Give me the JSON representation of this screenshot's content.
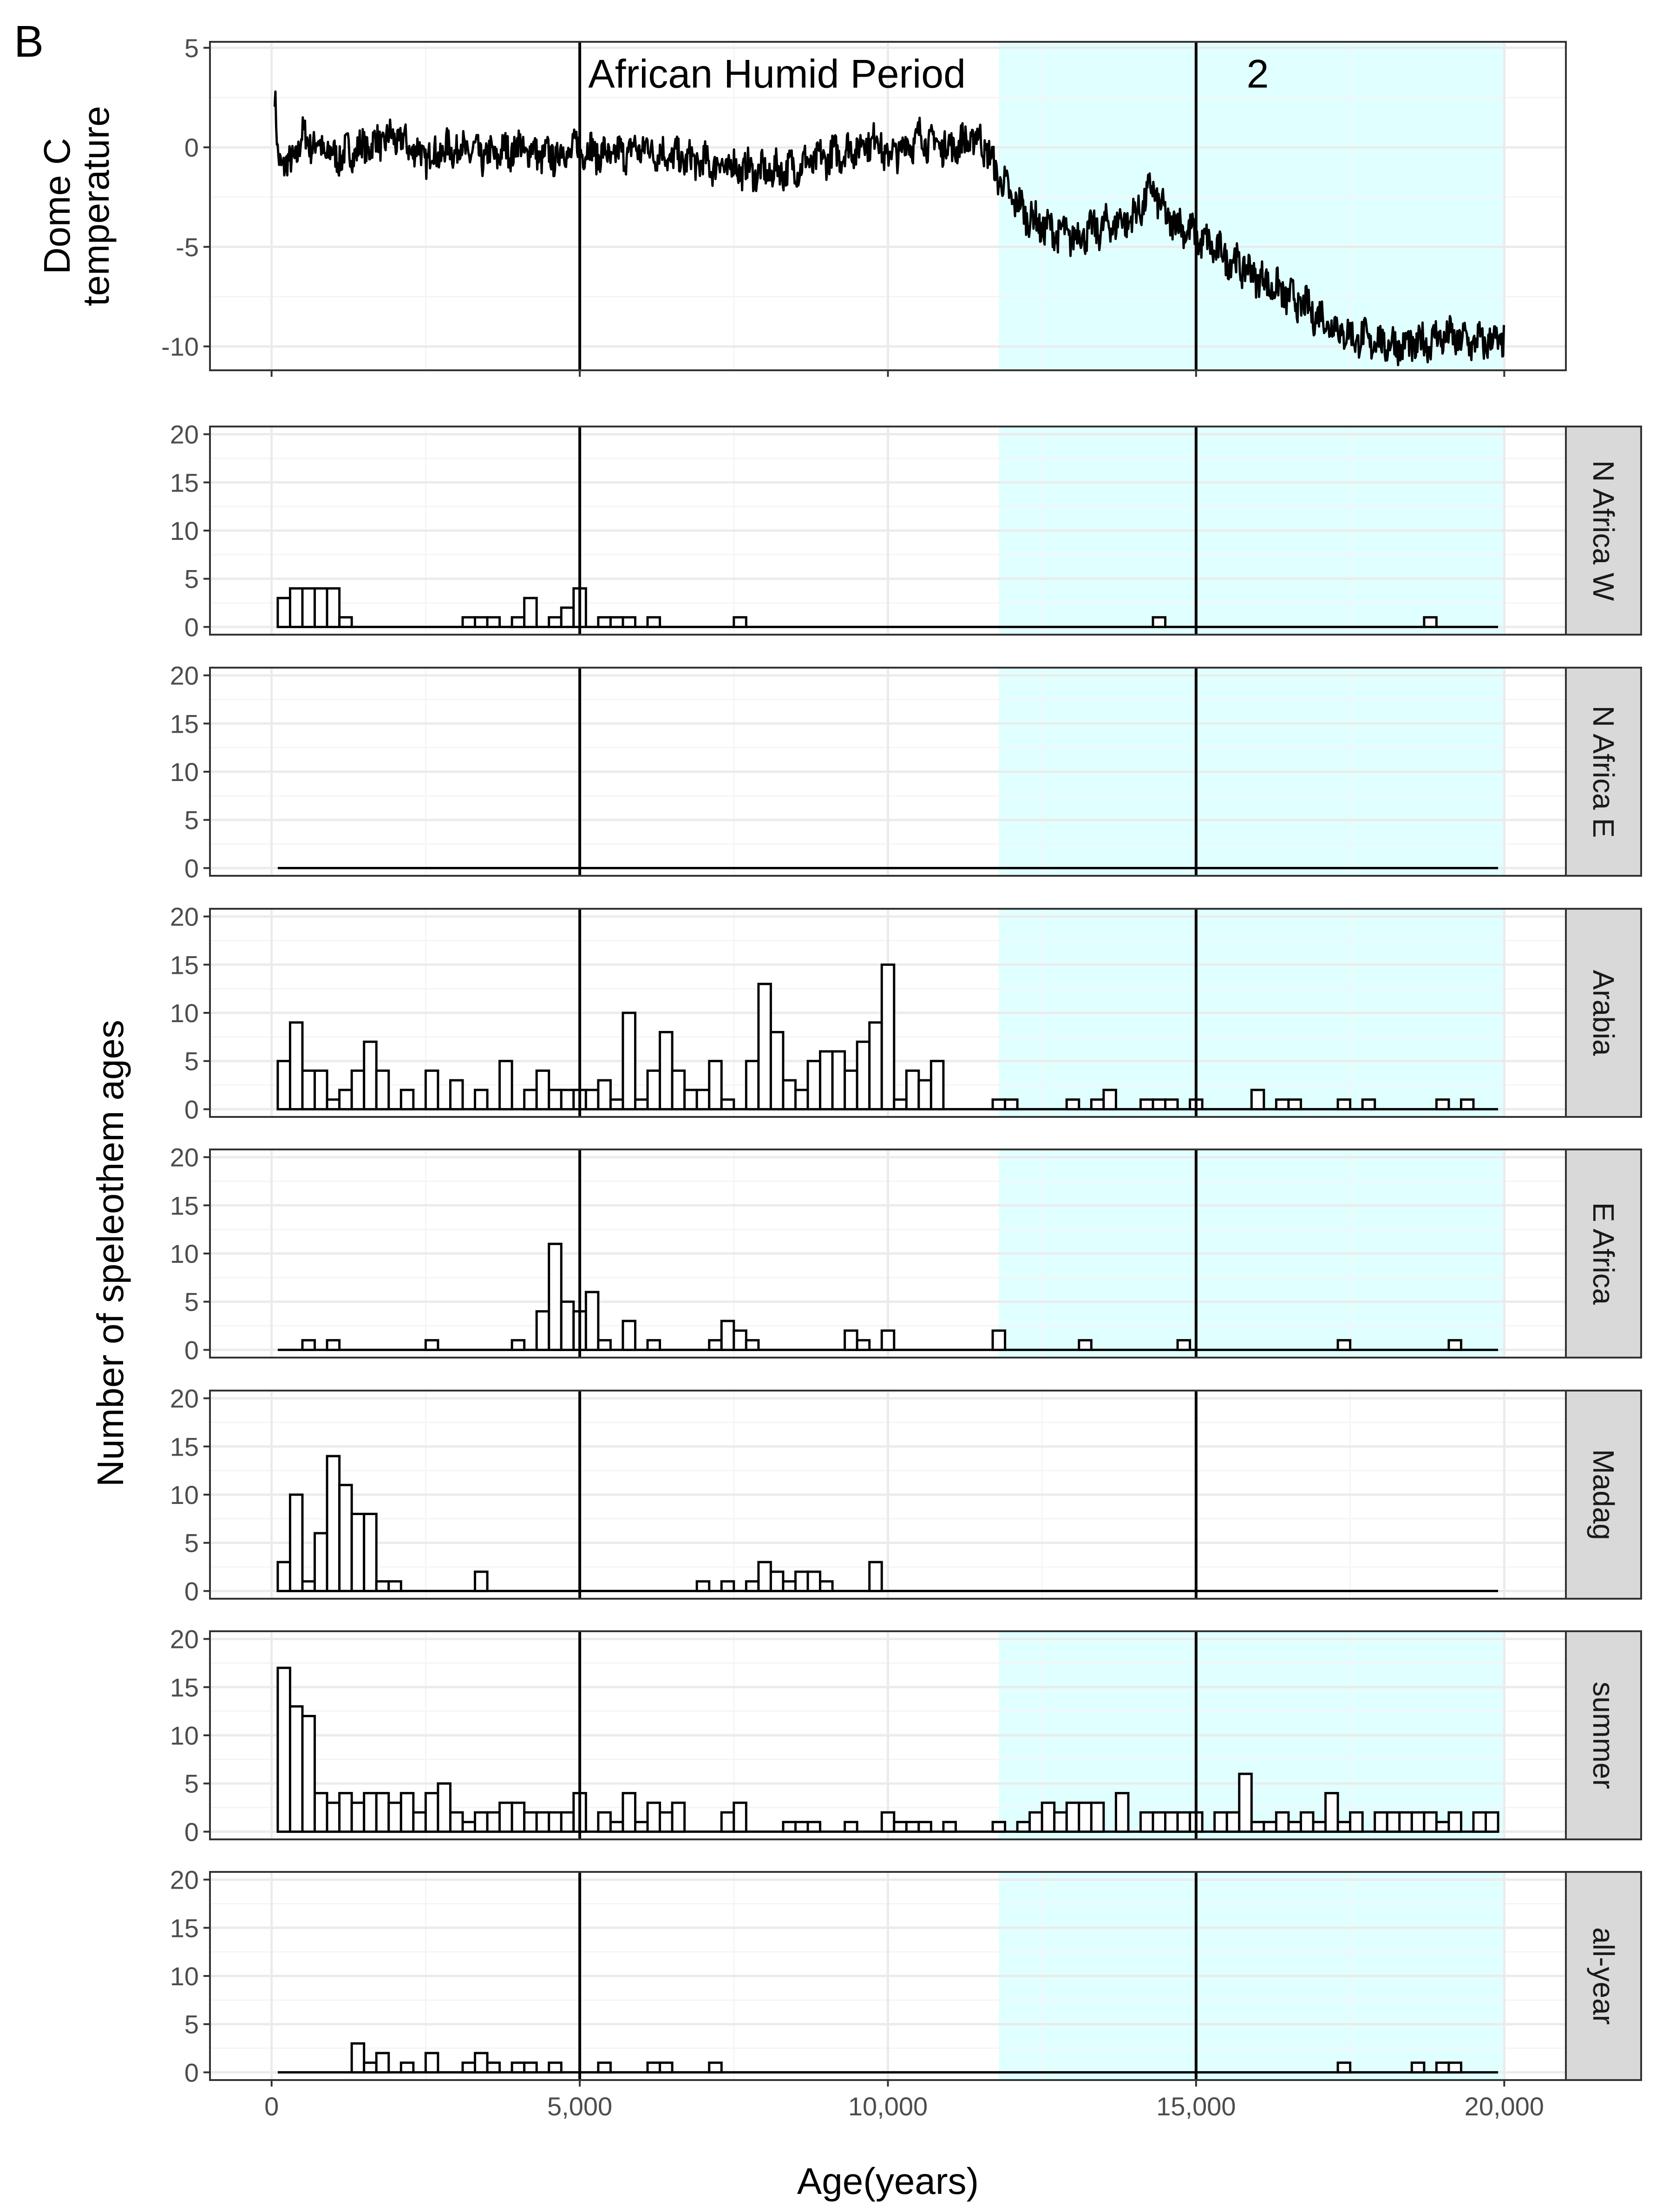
{
  "panel_tag": "B",
  "colors": {
    "shade": "#e0ffff",
    "grid_major": "#ebebeb",
    "grid_minor": "#f5f5f5",
    "frame": "#333333",
    "strip_fill": "#d9d9d9",
    "line": "#000000",
    "bar_fill": "#ffffff"
  },
  "chart_data": [
    {
      "type": "line",
      "title": "Dome C temperature",
      "ylabel": "Dome C\ntemperature",
      "ylabel_lines": [
        "Dome C",
        "temperature"
      ],
      "xlim": [
        -1000,
        21000
      ],
      "ylim": [
        -11.2,
        5.3
      ],
      "yticks": [
        5,
        0,
        -5,
        -10
      ],
      "ytick_labels": [
        "5",
        "0",
        "-5",
        "-10"
      ],
      "shaded_region": [
        11800,
        20000
      ],
      "vlines": [
        5000,
        15000
      ],
      "annotations": [
        {
          "text": "African Humid Period",
          "x": 8200,
          "y": 3.7
        },
        {
          "text": "2",
          "x": 16000,
          "y": 3.7
        }
      ],
      "series": [
        {
          "name": "Dome C temperature anomaly",
          "x": [
            50,
            100,
            300,
            500,
            800,
            1000,
            1500,
            2000,
            2500,
            3000,
            3500,
            4000,
            4500,
            5000,
            5500,
            6000,
            6500,
            7000,
            7500,
            8000,
            8500,
            9000,
            9500,
            9800,
            10000,
            10500,
            11000,
            11500,
            11800,
            12000,
            12300,
            12500,
            13000,
            13500,
            14000,
            14300,
            14500,
            14800,
            15000,
            15500,
            16000,
            16500,
            17000,
            17500,
            18000,
            18500,
            19000,
            19500,
            20000
          ],
          "y": [
            2.5,
            -0.5,
            -1,
            0.5,
            0,
            -0.5,
            0,
            0.5,
            -0.5,
            0,
            -0.5,
            0,
            -0.5,
            0,
            -0.5,
            0,
            -0.5,
            -0.8,
            -1,
            -1.3,
            -1,
            -0.5,
            0,
            0.5,
            -0.5,
            0.5,
            0,
            0.5,
            -1.5,
            -2.5,
            -3.5,
            -4,
            -4.5,
            -4,
            -3.5,
            -2,
            -3.5,
            -4,
            -4.5,
            -5.5,
            -6.5,
            -7.5,
            -8.5,
            -9.5,
            -9.8,
            -10,
            -9.5,
            -9.8,
            -9.7
          ]
        }
      ]
    },
    {
      "type": "bar",
      "title": "Number of speleothem ages",
      "ylabel": "Number of speleothem ages",
      "xlabel": "Age(years)",
      "xlim": [
        -1000,
        21000
      ],
      "ylim": [
        -0.8,
        20.8
      ],
      "xticks": [
        0,
        5000,
        10000,
        15000,
        20000
      ],
      "xtick_labels": [
        "0",
        "5,000",
        "10,000",
        "15,000",
        "20,000"
      ],
      "yticks": [
        0,
        5,
        10,
        15,
        20
      ],
      "ytick_labels": [
        "0",
        "5",
        "10",
        "15",
        "20"
      ],
      "bin_width": 200,
      "x_start": 100,
      "x_end": 19900,
      "shaded_region": [
        11800,
        20000
      ],
      "vlines": [
        5000,
        15000
      ],
      "facets": [
        {
          "label": "N Africa W",
          "shaded": true,
          "bins": [
            [
              200,
              3
            ],
            [
              400,
              4
            ],
            [
              600,
              4
            ],
            [
              800,
              4
            ],
            [
              1000,
              4
            ],
            [
              1200,
              1
            ],
            [
              3200,
              1
            ],
            [
              3400,
              1
            ],
            [
              3600,
              1
            ],
            [
              4000,
              1
            ],
            [
              4200,
              3
            ],
            [
              4600,
              1
            ],
            [
              4800,
              2
            ],
            [
              5000,
              4
            ],
            [
              5400,
              1
            ],
            [
              5600,
              1
            ],
            [
              5800,
              1
            ],
            [
              6200,
              1
            ],
            [
              7600,
              1
            ],
            [
              14400,
              1
            ],
            [
              18800,
              1
            ]
          ]
        },
        {
          "label": "N Africa E",
          "shaded": true,
          "bins": []
        },
        {
          "label": "Arabia",
          "shaded": true,
          "bins": [
            [
              200,
              5
            ],
            [
              400,
              9
            ],
            [
              600,
              4
            ],
            [
              800,
              4
            ],
            [
              1000,
              1
            ],
            [
              1200,
              2
            ],
            [
              1400,
              4
            ],
            [
              1600,
              7
            ],
            [
              1800,
              4
            ],
            [
              2200,
              2
            ],
            [
              2600,
              4
            ],
            [
              3000,
              3
            ],
            [
              3400,
              2
            ],
            [
              3800,
              5
            ],
            [
              4200,
              2
            ],
            [
              4400,
              4
            ],
            [
              4600,
              2
            ],
            [
              4800,
              2
            ],
            [
              5000,
              2
            ],
            [
              5200,
              2
            ],
            [
              5400,
              3
            ],
            [
              5600,
              1
            ],
            [
              5800,
              10
            ],
            [
              6000,
              1
            ],
            [
              6200,
              4
            ],
            [
              6400,
              8
            ],
            [
              6600,
              4
            ],
            [
              6800,
              2
            ],
            [
              7000,
              2
            ],
            [
              7200,
              5
            ],
            [
              7400,
              1
            ],
            [
              7800,
              5
            ],
            [
              8000,
              13
            ],
            [
              8200,
              8
            ],
            [
              8400,
              3
            ],
            [
              8600,
              2
            ],
            [
              8800,
              5
            ],
            [
              9000,
              6
            ],
            [
              9200,
              6
            ],
            [
              9400,
              4
            ],
            [
              9600,
              7
            ],
            [
              9800,
              9
            ],
            [
              10000,
              15
            ],
            [
              10200,
              1
            ],
            [
              10400,
              4
            ],
            [
              10600,
              3
            ],
            [
              10800,
              5
            ],
            [
              11800,
              1
            ],
            [
              12000,
              1
            ],
            [
              13000,
              1
            ],
            [
              13400,
              1
            ],
            [
              13600,
              2
            ],
            [
              14200,
              1
            ],
            [
              14400,
              1
            ],
            [
              14600,
              1
            ],
            [
              15000,
              1
            ],
            [
              16000,
              2
            ],
            [
              16400,
              1
            ],
            [
              16600,
              1
            ],
            [
              17400,
              1
            ],
            [
              17800,
              1
            ],
            [
              19000,
              1
            ],
            [
              19400,
              1
            ]
          ]
        },
        {
          "label": "E Africa",
          "shaded": true,
          "bins": [
            [
              600,
              1
            ],
            [
              1000,
              1
            ],
            [
              2600,
              1
            ],
            [
              4000,
              1
            ],
            [
              4400,
              4
            ],
            [
              4600,
              11
            ],
            [
              4800,
              5
            ],
            [
              5000,
              4
            ],
            [
              5200,
              6
            ],
            [
              5400,
              1
            ],
            [
              5800,
              3
            ],
            [
              6200,
              1
            ],
            [
              7200,
              1
            ],
            [
              7400,
              3
            ],
            [
              7600,
              2
            ],
            [
              7800,
              1
            ],
            [
              9400,
              2
            ],
            [
              9600,
              1
            ],
            [
              10000,
              2
            ],
            [
              11800,
              2
            ],
            [
              13200,
              1
            ],
            [
              14800,
              1
            ],
            [
              17400,
              1
            ],
            [
              19200,
              1
            ]
          ]
        },
        {
          "label": "Madag",
          "shaded": false,
          "bins": [
            [
              200,
              3
            ],
            [
              400,
              10
            ],
            [
              600,
              1
            ],
            [
              800,
              6
            ],
            [
              1000,
              14
            ],
            [
              1200,
              11
            ],
            [
              1400,
              8
            ],
            [
              1600,
              8
            ],
            [
              1800,
              1
            ],
            [
              2000,
              1
            ],
            [
              3400,
              2
            ],
            [
              7000,
              1
            ],
            [
              7400,
              1
            ],
            [
              7800,
              1
            ],
            [
              8000,
              3
            ],
            [
              8200,
              2
            ],
            [
              8400,
              1
            ],
            [
              8600,
              2
            ],
            [
              8800,
              2
            ],
            [
              9000,
              1
            ],
            [
              9800,
              3
            ]
          ]
        },
        {
          "label": "summer",
          "shaded": true,
          "bins": [
            [
              200,
              17
            ],
            [
              400,
              13
            ],
            [
              600,
              12
            ],
            [
              800,
              4
            ],
            [
              1000,
              3
            ],
            [
              1200,
              4
            ],
            [
              1400,
              3
            ],
            [
              1600,
              4
            ],
            [
              1800,
              4
            ],
            [
              2000,
              3
            ],
            [
              2200,
              4
            ],
            [
              2400,
              2
            ],
            [
              2600,
              4
            ],
            [
              2800,
              5
            ],
            [
              3000,
              2
            ],
            [
              3200,
              1
            ],
            [
              3400,
              2
            ],
            [
              3600,
              2
            ],
            [
              3800,
              3
            ],
            [
              4000,
              3
            ],
            [
              4200,
              2
            ],
            [
              4400,
              2
            ],
            [
              4600,
              2
            ],
            [
              4800,
              2
            ],
            [
              5000,
              4
            ],
            [
              5400,
              2
            ],
            [
              5600,
              1
            ],
            [
              5800,
              4
            ],
            [
              6000,
              1
            ],
            [
              6200,
              3
            ],
            [
              6400,
              2
            ],
            [
              6600,
              3
            ],
            [
              7400,
              2
            ],
            [
              7600,
              3
            ],
            [
              8400,
              1
            ],
            [
              8600,
              1
            ],
            [
              8800,
              1
            ],
            [
              9400,
              1
            ],
            [
              10000,
              2
            ],
            [
              10200,
              1
            ],
            [
              10400,
              1
            ],
            [
              10600,
              1
            ],
            [
              11000,
              1
            ],
            [
              11800,
              1
            ],
            [
              12200,
              1
            ],
            [
              12400,
              2
            ],
            [
              12600,
              3
            ],
            [
              12800,
              2
            ],
            [
              13000,
              3
            ],
            [
              13200,
              3
            ],
            [
              13400,
              3
            ],
            [
              13800,
              4
            ],
            [
              14200,
              2
            ],
            [
              14400,
              2
            ],
            [
              14600,
              2
            ],
            [
              14800,
              2
            ],
            [
              15000,
              2
            ],
            [
              15400,
              2
            ],
            [
              15600,
              2
            ],
            [
              15800,
              6
            ],
            [
              16000,
              1
            ],
            [
              16200,
              1
            ],
            [
              16400,
              2
            ],
            [
              16600,
              1
            ],
            [
              16800,
              2
            ],
            [
              17000,
              1
            ],
            [
              17200,
              4
            ],
            [
              17400,
              1
            ],
            [
              17600,
              2
            ],
            [
              18000,
              2
            ],
            [
              18200,
              2
            ],
            [
              18400,
              2
            ],
            [
              18600,
              2
            ],
            [
              18800,
              2
            ],
            [
              19000,
              1
            ],
            [
              19200,
              2
            ],
            [
              19600,
              2
            ],
            [
              19800,
              2
            ]
          ]
        },
        {
          "label": "all-year",
          "shaded": true,
          "bins": [
            [
              1400,
              3
            ],
            [
              1600,
              1
            ],
            [
              1800,
              2
            ],
            [
              2200,
              1
            ],
            [
              2600,
              2
            ],
            [
              3200,
              1
            ],
            [
              3400,
              2
            ],
            [
              3600,
              1
            ],
            [
              4000,
              1
            ],
            [
              4200,
              1
            ],
            [
              4600,
              1
            ],
            [
              5400,
              1
            ],
            [
              6200,
              1
            ],
            [
              6400,
              1
            ],
            [
              7200,
              1
            ],
            [
              17400,
              1
            ],
            [
              18600,
              1
            ],
            [
              19000,
              1
            ],
            [
              19200,
              1
            ]
          ]
        }
      ]
    }
  ]
}
